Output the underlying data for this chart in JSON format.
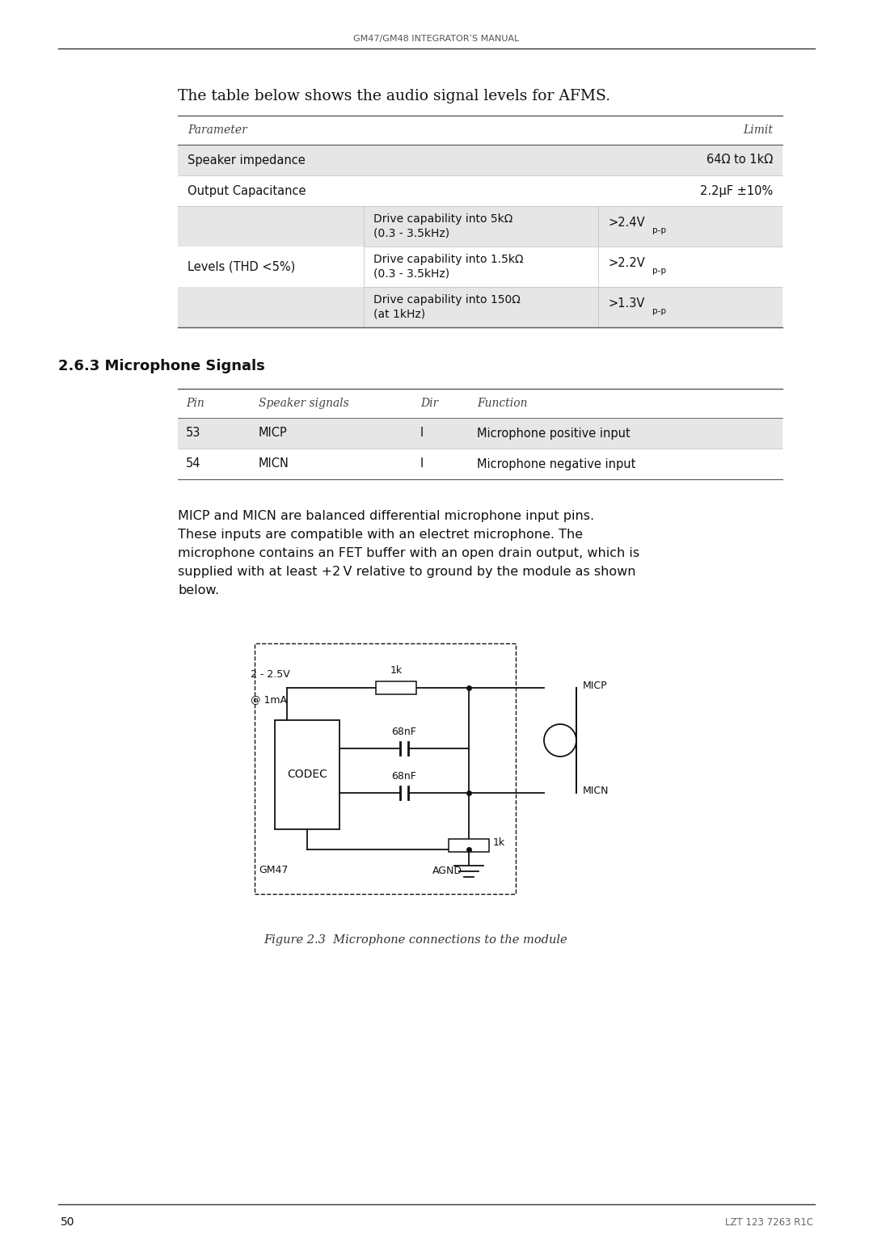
{
  "page_width": 10.8,
  "page_height": 15.28,
  "bg_color": "#ffffff",
  "header_text": "GM47/GM48 INTEGRATOR’S MANUAL",
  "footer_page": "50",
  "footer_right": "LZT 123 7263 R1C",
  "intro_text": "The table below shows the audio signal levels for AFMS.",
  "section_heading": "2.6.3 Microphone Signals",
  "body_text_lines": [
    "MICP and MICN are balanced differential microphone input pins.",
    "These inputs are compatible with an electret microphone. The",
    "microphone contains an FET buffer with an open drain output, which is",
    "supplied with at least +2 V relative to ground by the module as shown",
    "below."
  ],
  "figure_caption": "Figure 2.3  Microphone connections to the module",
  "circuit": {
    "supply_label_line1": "2 - 2.5V",
    "supply_label_line2": "@ 1mA",
    "r1_label": "1k",
    "c1_label": "68nF",
    "c2_label": "68nF",
    "r2_label": "1k",
    "codec_label": "CODEC",
    "micp_label": "MICP",
    "micn_label": "MICN",
    "agnd_label": "AGND",
    "gm47_label": "GM47"
  }
}
